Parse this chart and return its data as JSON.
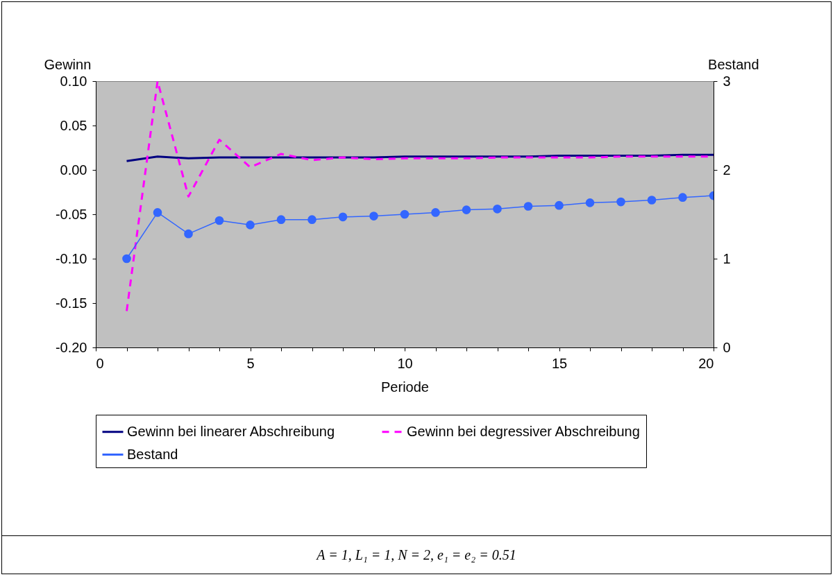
{
  "chart_data": {
    "type": "line",
    "xlabel": "Periode",
    "ylabel": "Gewinn",
    "y2label": "Bestand",
    "x": [
      1,
      2,
      3,
      4,
      5,
      6,
      7,
      8,
      9,
      10,
      11,
      12,
      13,
      14,
      15,
      16,
      17,
      18,
      19,
      20
    ],
    "series": [
      {
        "name": "Gewinn bei linearer Abschreibung",
        "color": "#000080",
        "line_style": "solid",
        "marker": "none",
        "values": [
          0.01,
          0.015,
          0.013,
          0.014,
          0.014,
          0.014,
          0.014,
          0.014,
          0.014,
          0.015,
          0.015,
          0.015,
          0.015,
          0.015,
          0.016,
          0.016,
          0.016,
          0.016,
          0.017,
          0.017
        ]
      },
      {
        "name": "Gewinn bei degressiver Abschreibung",
        "color": "#ff00ff",
        "line_style": "dashed",
        "marker": "none",
        "values": [
          -0.159,
          0.1,
          -0.03,
          0.034,
          0.003,
          0.018,
          0.011,
          0.014,
          0.012,
          0.013,
          0.013,
          0.013,
          0.014,
          0.014,
          0.014,
          0.014,
          0.015,
          0.015,
          0.015,
          0.015
        ]
      },
      {
        "name": "Bestand",
        "color": "#3366ff",
        "line_style": "solid",
        "marker": "circle",
        "axis": "y2",
        "values": [
          1.0,
          1.52,
          1.28,
          1.43,
          1.38,
          1.44,
          1.44,
          1.47,
          1.48,
          1.5,
          1.52,
          1.55,
          1.56,
          1.59,
          1.6,
          1.63,
          1.64,
          1.66,
          1.69,
          1.71
        ]
      }
    ],
    "xlim": [
      0,
      20
    ],
    "xticks": [
      0,
      {
        "value": 1,
        "label": null
      },
      {
        "value": 2,
        "label": null
      },
      {
        "value": 3,
        "label": null
      },
      {
        "value": 4,
        "label": null
      },
      5,
      {
        "value": 6,
        "label": null
      },
      {
        "value": 7,
        "label": null
      },
      {
        "value": 8,
        "label": null
      },
      {
        "value": 9,
        "label": null
      },
      10,
      {
        "value": 11,
        "label": null
      },
      {
        "value": 12,
        "label": null
      },
      {
        "value": 13,
        "label": null
      },
      {
        "value": 14,
        "label": null
      },
      15,
      {
        "value": 16,
        "label": null
      },
      {
        "value": 17,
        "label": null
      },
      {
        "value": 18,
        "label": null
      },
      {
        "value": 19,
        "label": null
      },
      20
    ],
    "ylim": [
      -0.2,
      0.1
    ],
    "yticks": [
      {
        "value": -0.2,
        "label": "-0.20"
      },
      {
        "value": -0.15,
        "label": "-0.15"
      },
      {
        "value": -0.1,
        "label": "-0.10"
      },
      {
        "value": -0.05,
        "label": "-0.05"
      },
      {
        "value": 0,
        "label": "0.00"
      },
      {
        "value": 0.05,
        "label": "0.05"
      },
      {
        "value": 0.1,
        "label": "0.10"
      }
    ],
    "y2lim": [
      0,
      3
    ],
    "y2ticks": [
      0,
      1,
      2,
      3
    ],
    "grid": false,
    "legend": "bottom",
    "annotations": [
      "A = 1, L₁ = 1, N = 2, e₁ = e₂ = 0.51"
    ]
  }
}
